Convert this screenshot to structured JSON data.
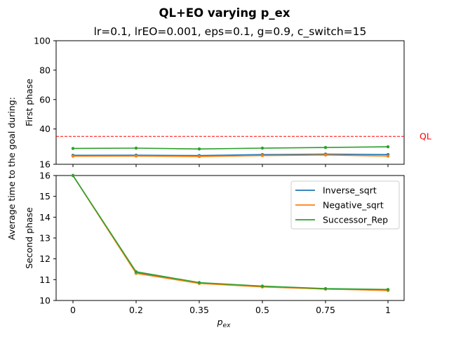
{
  "chart_data": {
    "type": "line",
    "title": "QL+EO varying p_ex",
    "subtitle": "lr=0.1, lrEO=0.001, eps=0.1, g=0.9, c_switch=15",
    "shared_ylabel": "Average time to the goal during:",
    "xlabel_main": "p",
    "xlabel_sub": "ex",
    "categories": [
      "0",
      "0.2",
      "0.35",
      "0.5",
      "0.75",
      "1"
    ],
    "series_colors": [
      "#1f77b4",
      "#ff7f0e",
      "#2ca02c"
    ],
    "legend": {
      "placement": "upper right of second panel",
      "entries": [
        "Inverse_sqrt",
        "Negative_sqrt",
        "Successor_Rep"
      ]
    },
    "panels": [
      {
        "ylabel": "First phase",
        "ylim": [
          16,
          100
        ],
        "yticks": [
          16,
          40,
          60,
          80,
          100
        ],
        "reference_line": {
          "label": "QL",
          "value": 35,
          "color": "#ff0000"
        },
        "series": [
          {
            "name": "Inverse_sqrt",
            "values": [
              22.1,
              22.2,
              21.9,
              22.6,
              22.9,
              22.6
            ]
          },
          {
            "name": "Negative_sqrt",
            "values": [
              21.5,
              21.6,
              21.3,
              21.9,
              22.3,
              21.6
            ]
          },
          {
            "name": "Successor_Rep",
            "values": [
              26.8,
              27.0,
              26.4,
              27.0,
              27.4,
              27.9
            ]
          }
        ]
      },
      {
        "ylabel": "Second phase",
        "ylim": [
          10,
          16
        ],
        "yticks": [
          10,
          11,
          12,
          13,
          14,
          15,
          16
        ],
        "series": [
          {
            "name": "Inverse_sqrt",
            "values": [
              16.0,
              11.32,
              10.84,
              10.67,
              10.55,
              10.5
            ]
          },
          {
            "name": "Negative_sqrt",
            "values": [
              16.0,
              11.3,
              10.82,
              10.65,
              10.55,
              10.48
            ]
          },
          {
            "name": "Successor_Rep",
            "values": [
              16.0,
              11.38,
              10.86,
              10.69,
              10.57,
              10.53
            ]
          }
        ]
      }
    ]
  }
}
